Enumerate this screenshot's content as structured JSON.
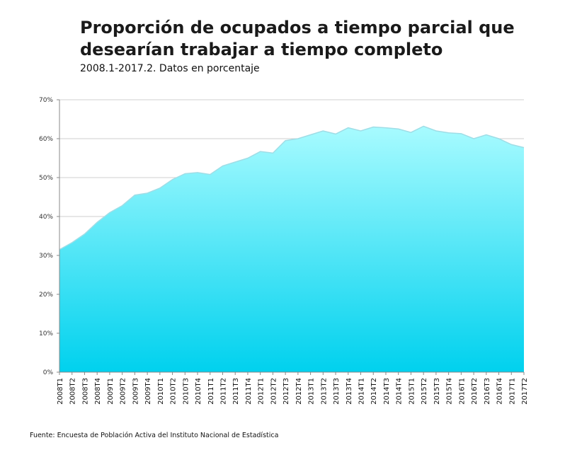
{
  "chart_data": {
    "type": "area",
    "title": "Proporción de ocupados a tiempo parcial que desearían trabajar a tiempo completo",
    "subtitle": "2008.1-2017.2. Datos en porcentaje",
    "source": "Fuente: Encuesta de Población Activa del Instituto Nacional de Estadística",
    "ylim": [
      0,
      70
    ],
    "yticks": [
      "0%",
      "10%",
      "20%",
      "30%",
      "40%",
      "50%",
      "60%",
      "70%"
    ],
    "ytick_values": [
      0,
      10,
      20,
      30,
      40,
      50,
      60,
      70
    ],
    "grid": true,
    "categories": [
      "2008T1",
      "2008T2",
      "2008T3",
      "2008T4",
      "2009T1",
      "2009T2",
      "2009T3",
      "2009T4",
      "2010T1",
      "2010T2",
      "2010T3",
      "2010T4",
      "2011T1",
      "2011T2",
      "2011T3",
      "2011T4",
      "2012T1",
      "2012T2",
      "2012T3",
      "2012T4",
      "2013T1",
      "2013T2",
      "2013T3",
      "2013T4",
      "2014T1",
      "2014T2",
      "2014T3",
      "2014T4",
      "2015T1",
      "2015T2",
      "2015T3",
      "2015T4",
      "2016T1",
      "2016T2",
      "2016T3",
      "2016T4",
      "2017T1",
      "2017T2"
    ],
    "values": [
      31.5,
      33.3,
      35.5,
      38.5,
      41.0,
      42.8,
      45.5,
      46.0,
      47.3,
      49.5,
      51.0,
      51.3,
      50.8,
      53.0,
      54.0,
      55.0,
      56.7,
      56.3,
      59.5,
      60.0,
      61.0,
      62.0,
      61.2,
      62.8,
      62.0,
      63.0,
      62.8,
      62.5,
      61.6,
      63.2,
      62.0,
      61.5,
      61.3,
      60.0,
      61.0,
      60.0,
      58.5,
      57.7
    ],
    "fill_color_top": "#a8fbff",
    "fill_color_bottom": "#00d1ee",
    "outline_color": "#9fdde6"
  }
}
